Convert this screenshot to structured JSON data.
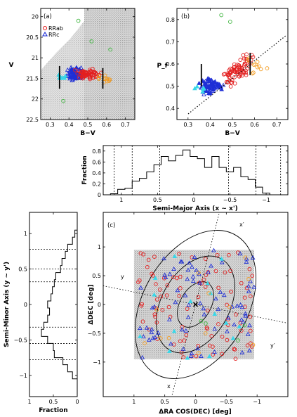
{
  "colors": {
    "rrab": "#e32020",
    "rrc": "#1f2fd6",
    "orange": "#f29a1e",
    "cyan": "#38d7e8",
    "green": "#3fb53f",
    "field": "#b5b5b5",
    "black": "#000000"
  },
  "chart_data": [
    {
      "id": "a",
      "type": "scatter",
      "panel_label": "(a)",
      "xlabel": "B−V",
      "ylabel": "V",
      "xlim": [
        0.25,
        0.75
      ],
      "ylim": [
        22.5,
        19.8
      ],
      "xticks": [
        "0.3",
        "0.4",
        "0.5",
        "0.6",
        "0.7"
      ],
      "yticks": [
        "20",
        "20.5",
        "21",
        "21.5",
        "22",
        "22.5"
      ],
      "legend": [
        {
          "label": "RRab",
          "marker": "circle",
          "color": "#e32020"
        },
        {
          "label": "RRc",
          "marker": "triangle",
          "color": "#1f2fd6"
        }
      ],
      "green_points": [
        [
          0.45,
          20.1
        ],
        [
          0.52,
          20.6
        ],
        [
          0.62,
          20.8
        ],
        [
          0.37,
          22.05
        ]
      ],
      "bars": [
        {
          "x": 0.35,
          "y0": 21.2,
          "y1": 21.75
        },
        {
          "x": 0.58,
          "y0": 21.25,
          "y1": 21.75
        }
      ]
    },
    {
      "id": "b",
      "type": "scatter",
      "panel_label": "(b)",
      "xlabel": "B−V",
      "ylabel": "P_f",
      "xlim": [
        0.25,
        0.75
      ],
      "ylim": [
        0.35,
        0.85
      ],
      "xticks": [
        "0.3",
        "0.4",
        "0.5",
        "0.6",
        "0.7"
      ],
      "yticks": [
        "0.4",
        "0.5",
        "0.6",
        "0.7",
        "0.8"
      ],
      "green_points": [
        [
          0.45,
          0.82
        ],
        [
          0.49,
          0.79
        ]
      ],
      "bars": [
        {
          "x": 0.36,
          "y0": 0.5,
          "y1": 0.6
        },
        {
          "x": 0.58,
          "y0": 0.55,
          "y1": 0.65
        }
      ]
    },
    {
      "id": "histx",
      "type": "bar",
      "xlabel": "Semi-Major Axis (x ~ x')",
      "ylabel": "Fraction",
      "xlim": [
        1.25,
        -1.3
      ],
      "ylim": [
        0,
        0.9
      ],
      "xticks": [
        "1",
        "0.5",
        "0",
        "−0.5",
        "−1"
      ],
      "yticks": [
        "0",
        "0.2",
        "0.4",
        "0.6",
        "0.8"
      ],
      "edges": [
        1.15,
        1.05,
        0.95,
        0.85,
        0.75,
        0.65,
        0.55,
        0.45,
        0.35,
        0.25,
        0.15,
        0.05,
        -0.05,
        -0.15,
        -0.25,
        -0.35,
        -0.45,
        -0.55,
        -0.65,
        -0.75,
        -0.85,
        -0.95,
        -1.05
      ],
      "values": [
        0.02,
        0.1,
        0.12,
        0.25,
        0.3,
        0.42,
        0.55,
        0.7,
        0.62,
        0.72,
        0.82,
        0.7,
        0.66,
        0.5,
        0.7,
        0.5,
        0.42,
        0.5,
        0.33,
        0.28,
        0.14,
        0.03
      ],
      "dashed_lines": [
        1.1,
        0.85,
        0.47,
        -0.48,
        -0.86,
        -1.2
      ]
    },
    {
      "id": "histy",
      "type": "bar",
      "orientation": "horizontal",
      "xlabel": "Fraction",
      "ylabel": "Semi-Minor Axis (y ~ y')",
      "xlim": [
        1,
        0
      ],
      "ylim": [
        -1.3,
        1.3
      ],
      "xticks": [
        "1",
        "0.5",
        "0"
      ],
      "yticks": [
        "1",
        "0.5",
        "0",
        "−0.5",
        "−1"
      ],
      "edges": [
        1.05,
        0.95,
        0.85,
        0.75,
        0.65,
        0.55,
        0.45,
        0.35,
        0.25,
        0.15,
        0.05,
        -0.05,
        -0.15,
        -0.25,
        -0.35,
        -0.45,
        -0.55,
        -0.65,
        -0.75,
        -0.85,
        -0.95,
        -1.05
      ],
      "values": [
        0.05,
        0.1,
        0.2,
        0.25,
        0.32,
        0.35,
        0.45,
        0.48,
        0.52,
        0.55,
        0.62,
        0.58,
        0.62,
        0.7,
        0.75,
        0.62,
        0.5,
        0.48,
        0.3,
        0.2,
        0.1
      ],
      "dashed_lines": [
        0.78,
        0.5,
        0.32,
        -0.32,
        -0.55,
        -0.78
      ]
    },
    {
      "id": "c",
      "type": "scatter",
      "panel_label": "(c)",
      "xlabel": "ΔRA COS(DEC) [deg]",
      "ylabel": "ΔDEC [deg]",
      "xlim": [
        1.5,
        -1.5
      ],
      "ylim": [
        -1.6,
        1.6
      ],
      "xticks": [
        "1",
        "0.5",
        "0",
        "−0.5",
        "−1"
      ],
      "yticks": [
        "1",
        "0.5",
        "0",
        "−0.5",
        "−1"
      ],
      "axis_labels": {
        "x": "x",
        "x_prime": "x′",
        "y": "y",
        "y_prime": "y′"
      },
      "field_box": {
        "x0": 1.0,
        "x1": -0.95,
        "y0": -0.95,
        "y1": 0.95
      },
      "ellipses": [
        {
          "a": 0.4,
          "b": 0.25
        },
        {
          "a": 0.85,
          "b": 0.55
        },
        {
          "a": 1.3,
          "b": 0.85
        }
      ],
      "rotation_deg": 60
    }
  ]
}
